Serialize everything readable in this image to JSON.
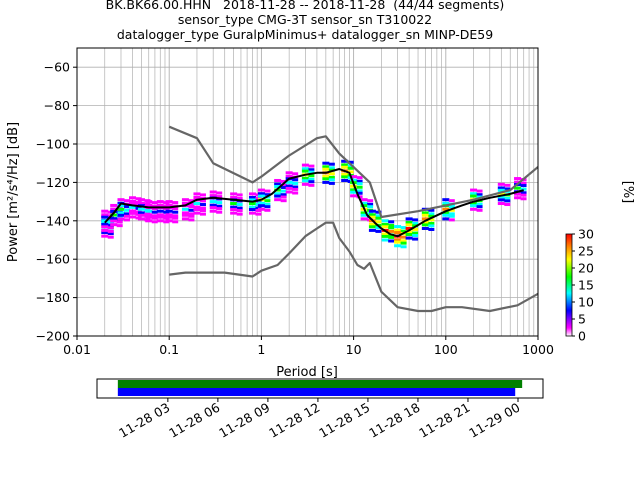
{
  "header": {
    "line1": "BK.BK66.00.HHN   2018-11-28 -- 2018-11-28  (44/44 segments)",
    "line2": "sensor_type CMG-3T sensor_sn T310022",
    "line3": "datalogger_type GuralpMinimus+ datalogger_sn MINP-DE59"
  },
  "chart_data": [
    {
      "type": "heatmap",
      "title": "BK.BK66.00.HHN   2018-11-28 -- 2018-11-28  (44/44 segments)",
      "xlabel": "Period [s]",
      "ylabel": "Power [m²/s⁴/Hz] [dB]",
      "xscale": "log",
      "xlim": [
        0.01,
        1000
      ],
      "ylim": [
        -200,
        -50
      ],
      "x_ticks": [
        "0.01",
        "0.1",
        "1",
        "10",
        "100",
        "1000"
      ],
      "y_ticks": [
        "-200",
        "-180",
        "-160",
        "-140",
        "-120",
        "-100",
        "-80",
        "-60"
      ],
      "grid": true,
      "colorbar": {
        "label": "[%]",
        "ticks": [
          "0",
          "5",
          "10",
          "15",
          "20",
          "25",
          "30"
        ],
        "range": [
          0,
          30
        ],
        "colors": [
          "#ffffff",
          "#ff00ff",
          "#0000ff",
          "#00ffff",
          "#00ff00",
          "#ffff00",
          "#ff8000",
          "#ff0000"
        ]
      },
      "series": [
        {
          "name": "",
          "style": "mean",
          "color": "#000000",
          "x": [
            0.02,
            0.025,
            0.03,
            0.04,
            0.06,
            0.1,
            0.15,
            0.2,
            0.3,
            0.5,
            0.8,
            1.0,
            1.3,
            2,
            3,
            4,
            5,
            7,
            9,
            11,
            14,
            17,
            20,
            25,
            30,
            40,
            60,
            100,
            150,
            200,
            300,
            500,
            700
          ],
          "y": [
            -141,
            -136,
            -131,
            -132,
            -133,
            -133,
            -132,
            -129,
            -128,
            -129,
            -130,
            -129,
            -126,
            -118,
            -116,
            -115,
            -115,
            -113,
            -115,
            -126,
            -137,
            -141,
            -144,
            -147,
            -148,
            -145,
            -140,
            -135,
            -132,
            -130,
            -128,
            -126,
            -124
          ]
        },
        {
          "name": "",
          "style": "reference-upper",
          "color": "#666666",
          "x": [
            0.1,
            0.2,
            0.3,
            0.8,
            1,
            2,
            4,
            5,
            7,
            15,
            20,
            50,
            100,
            200,
            500,
            1000
          ],
          "y": [
            -91,
            -97,
            -110,
            -120,
            -117,
            -106,
            -97,
            -96,
            -105,
            -120,
            -138,
            -135,
            -132,
            -129,
            -124,
            -112
          ]
        },
        {
          "name": "",
          "style": "reference-lower",
          "color": "#666666",
          "x": [
            0.1,
            0.15,
            0.2,
            0.4,
            0.8,
            1,
            1.5,
            2,
            3,
            4,
            5,
            6,
            7,
            9,
            11,
            13,
            15,
            20,
            30,
            50,
            70,
            100,
            150,
            300,
            600,
            1000
          ],
          "y": [
            -168,
            -167,
            -167,
            -167,
            -169,
            -166,
            -163,
            -157,
            -148,
            -144,
            -141,
            -141,
            -149,
            -156,
            -163,
            -165,
            -162,
            -177,
            -185,
            -187,
            -187,
            -185,
            -185,
            -187,
            -184,
            -178
          ]
        }
      ],
      "density_points": [
        {
          "x": 0.02,
          "y": -143,
          "pct": 18
        },
        {
          "x": 0.02,
          "y": -140,
          "pct": 12
        },
        {
          "x": 0.025,
          "y": -137,
          "pct": 14
        },
        {
          "x": 0.03,
          "y": -134,
          "pct": 16
        },
        {
          "x": 0.04,
          "y": -133,
          "pct": 10
        },
        {
          "x": 0.05,
          "y": -134,
          "pct": 11
        },
        {
          "x": 0.06,
          "y": -135,
          "pct": 9
        },
        {
          "x": 0.08,
          "y": -135,
          "pct": 8
        },
        {
          "x": 0.1,
          "y": -135,
          "pct": 8
        },
        {
          "x": 0.15,
          "y": -134,
          "pct": 9
        },
        {
          "x": 0.2,
          "y": -131,
          "pct": 10
        },
        {
          "x": 0.3,
          "y": -130,
          "pct": 12
        },
        {
          "x": 0.5,
          "y": -131,
          "pct": 14
        },
        {
          "x": 0.8,
          "y": -131,
          "pct": 16
        },
        {
          "x": 1.0,
          "y": -129,
          "pct": 18
        },
        {
          "x": 1.5,
          "y": -124,
          "pct": 16
        },
        {
          "x": 2.0,
          "y": -120,
          "pct": 12
        },
        {
          "x": 3.0,
          "y": -116,
          "pct": 20
        },
        {
          "x": 5.0,
          "y": -115,
          "pct": 24
        },
        {
          "x": 8.0,
          "y": -114,
          "pct": 25
        },
        {
          "x": 10,
          "y": -122,
          "pct": 20
        },
        {
          "x": 13,
          "y": -134,
          "pct": 20
        },
        {
          "x": 16,
          "y": -140,
          "pct": 24
        },
        {
          "x": 22,
          "y": -145,
          "pct": 28
        },
        {
          "x": 30,
          "y": -148,
          "pct": 30
        },
        {
          "x": 40,
          "y": -144,
          "pct": 26
        },
        {
          "x": 60,
          "y": -139,
          "pct": 25
        },
        {
          "x": 100,
          "y": -134,
          "pct": 22
        },
        {
          "x": 200,
          "y": -129,
          "pct": 20
        },
        {
          "x": 400,
          "y": -126,
          "pct": 18
        },
        {
          "x": 600,
          "y": -123,
          "pct": 15
        }
      ]
    },
    {
      "type": "timeline",
      "xlabel": "",
      "x_ticks": [
        "11-28 03",
        "11-28 06",
        "11-28 09",
        "11-28 12",
        "11-28 15",
        "11-28 18",
        "11-28 21",
        "11-29 00"
      ],
      "series": [
        {
          "name": "",
          "color": "#008000",
          "start": "2018-11-28 00:00",
          "end": "2018-11-29 00:15"
        },
        {
          "name": "",
          "color": "#0000ff",
          "start": "2018-11-28 00:00",
          "end": "2018-11-28 23:50"
        }
      ],
      "xlim": [
        "2018-11-27 22:45",
        "2018-11-29 01:30"
      ]
    }
  ]
}
